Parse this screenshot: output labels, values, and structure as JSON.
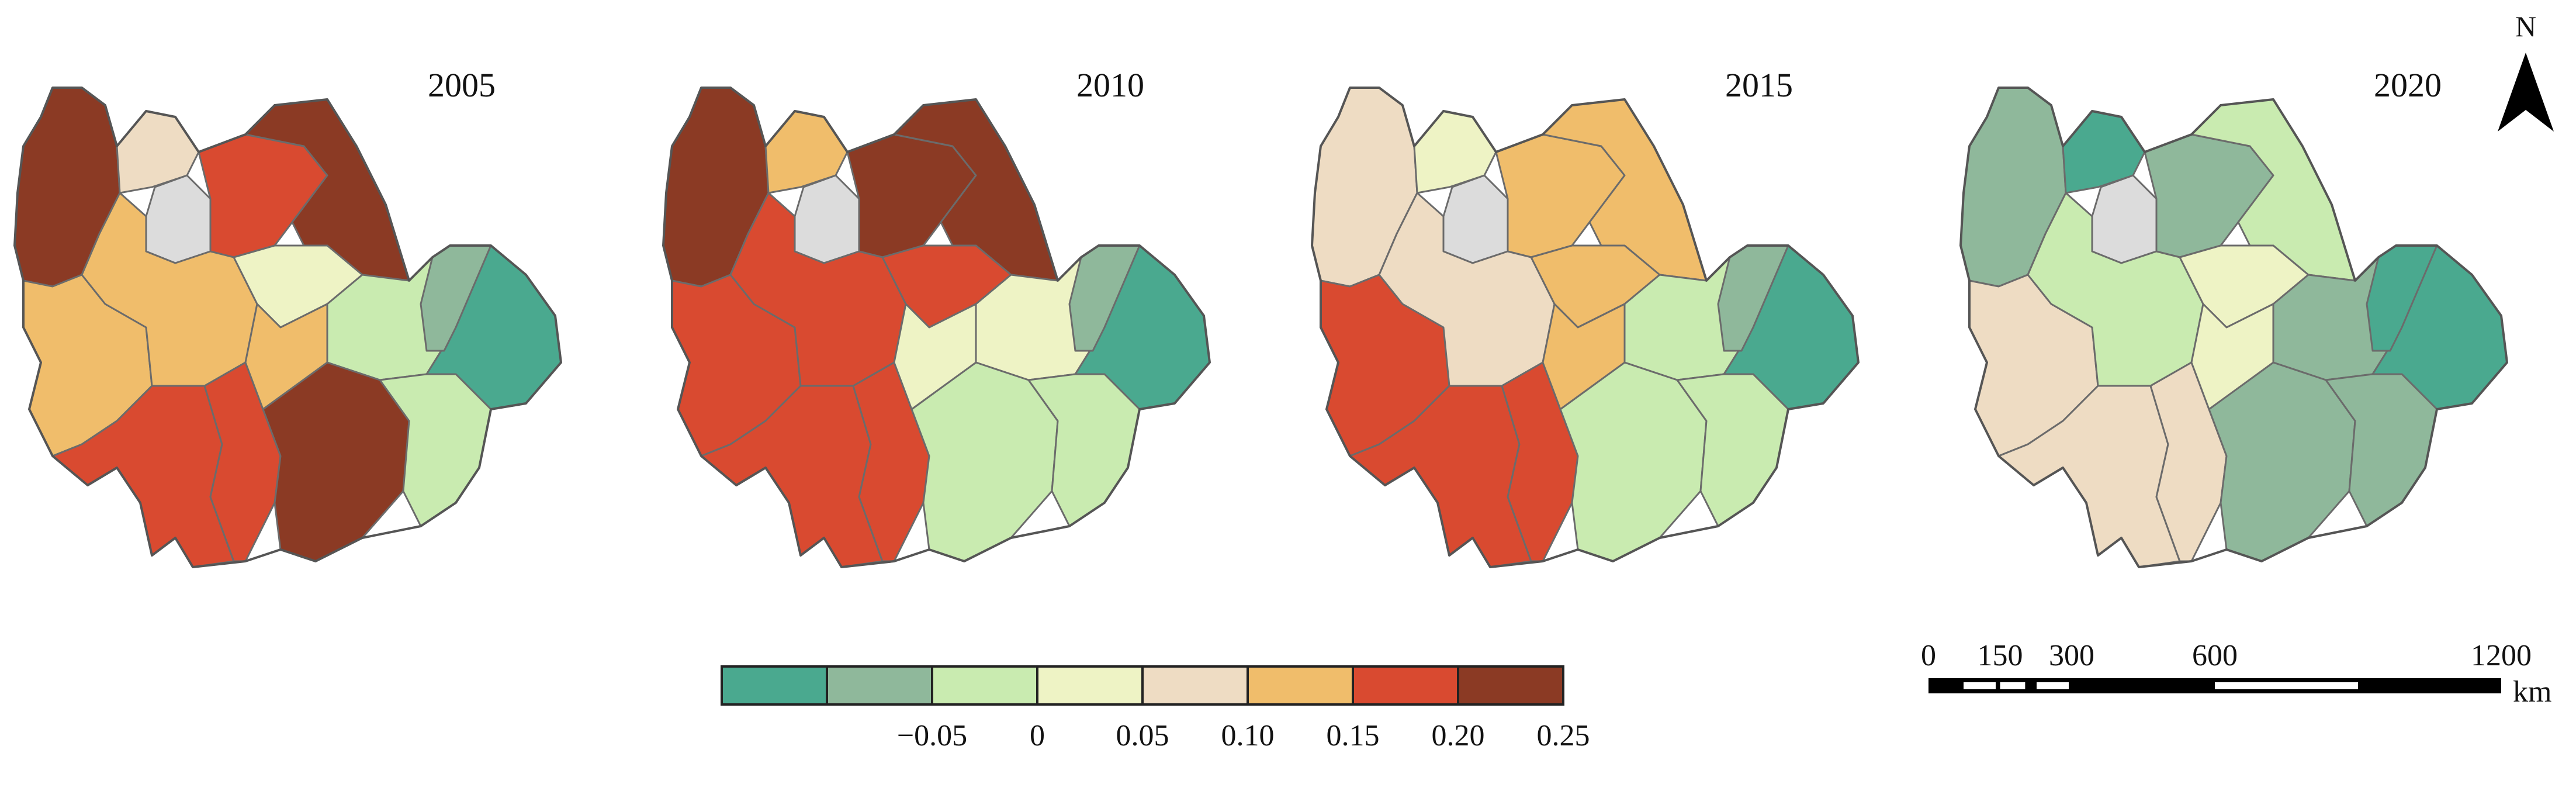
{
  "panels": [
    {
      "year": "2005",
      "colors": {
        "nw": "#8b3a24",
        "n1": "#eedcc3",
        "hole": "#dcdcdc",
        "nc": "#d94a30",
        "ne1": "#8b3a24",
        "cw": "#f0bd6b",
        "c1": "#f0bd6b",
        "c2": "#eef3c5",
        "e1": "#c9ebb0",
        "ee": "#4aa98f",
        "ee2": "#8fb89b",
        "sw": "#d94a30",
        "s1": "#d94a30",
        "se": "#8b3a24",
        "se2": "#c9ebb0",
        "cc": "#f0bd6b"
      }
    },
    {
      "year": "2010",
      "colors": {
        "nw": "#8b3a24",
        "n1": "#f0bd6b",
        "hole": "#dcdcdc",
        "nc": "#8b3a24",
        "ne1": "#8b3a24",
        "cw": "#d94a30",
        "c1": "#d94a30",
        "c2": "#d94a30",
        "e1": "#eef3c5",
        "ee": "#4aa98f",
        "ee2": "#8fb89b",
        "sw": "#d94a30",
        "s1": "#d94a30",
        "se": "#c9ebb0",
        "se2": "#c9ebb0",
        "cc": "#eef3c5"
      }
    },
    {
      "year": "2015",
      "colors": {
        "nw": "#eedcc3",
        "n1": "#eef3c5",
        "hole": "#dcdcdc",
        "nc": "#f0bd6b",
        "ne1": "#f0bd6b",
        "cw": "#d94a30",
        "c1": "#eedcc3",
        "c2": "#f0bd6b",
        "e1": "#c9ebb0",
        "ee": "#4aa98f",
        "ee2": "#8fb89b",
        "sw": "#d94a30",
        "s1": "#d94a30",
        "se": "#c9ebb0",
        "se2": "#c9ebb0",
        "cc": "#f0bd6b"
      }
    },
    {
      "year": "2020",
      "colors": {
        "nw": "#8fb89b",
        "n1": "#4aa98f",
        "hole": "#dcdcdc",
        "nc": "#8fb89b",
        "ne1": "#c9ebb0",
        "cw": "#eedcc3",
        "c1": "#c9ebb0",
        "c2": "#eef3c5",
        "e1": "#8fb89b",
        "ee": "#4aa98f",
        "ee2": "#4aa98f",
        "sw": "#eedcc3",
        "s1": "#eedcc3",
        "se": "#8fb89b",
        "se2": "#8fb89b",
        "cc": "#eef3c5"
      }
    }
  ],
  "legend": {
    "colors": [
      "#4aa98f",
      "#8fb89b",
      "#c9ebb0",
      "#eef3c5",
      "#eedcc3",
      "#f0bd6b",
      "#d94a30",
      "#8b3a24"
    ],
    "ticks": [
      "−0.05",
      "0",
      "0.05",
      "0.10",
      "0.15",
      "0.20",
      "0.25"
    ]
  },
  "north_arrow": {
    "label": "N"
  },
  "scale_bar": {
    "ticks": [
      "0",
      "150",
      "300",
      "600",
      "1200"
    ],
    "unit": "km"
  }
}
